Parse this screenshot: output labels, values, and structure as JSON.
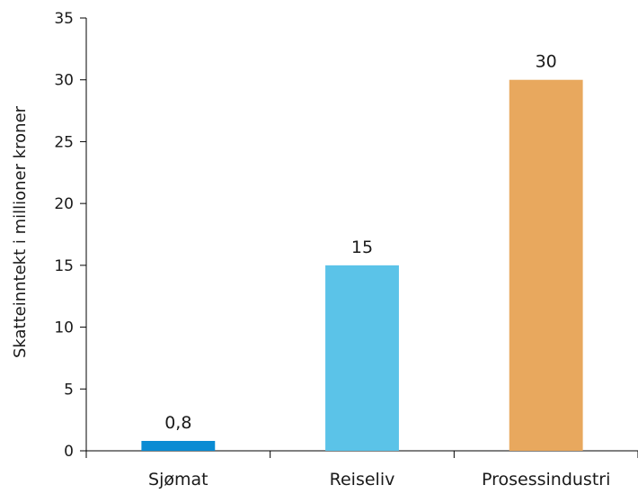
{
  "chart_data": {
    "type": "bar",
    "title": "",
    "xlabel": "",
    "ylabel": "Skatteinntekt i millioner kroner",
    "ylim": [
      0,
      35
    ],
    "yticks": [
      0,
      5,
      10,
      15,
      20,
      25,
      30,
      35
    ],
    "grid": false,
    "categories": [
      "Sjømat",
      "Reiseliv",
      "Prosessindustri"
    ],
    "values": [
      0.8,
      15,
      30
    ],
    "data_labels": [
      "0,8",
      "15",
      "30"
    ],
    "colors": [
      "#0a8bd3",
      "#5bc3e8",
      "#e8a85e"
    ]
  }
}
